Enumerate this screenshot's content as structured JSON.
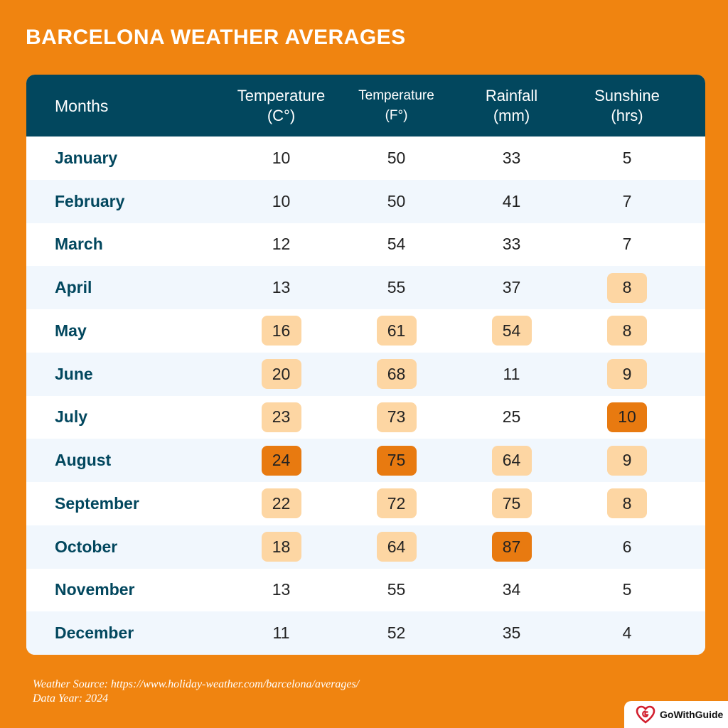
{
  "title": "BARCELONA WEATHER AVERAGES",
  "header": {
    "months": "Months",
    "temp_c": [
      "Temperature",
      "(C°)"
    ],
    "temp_f": [
      "Temperature",
      "(F°)"
    ],
    "rainfall": [
      "Rainfall",
      "(mm)"
    ],
    "sunshine": [
      "Sunshine",
      "(hrs)"
    ]
  },
  "source": {
    "line1": "Weather Source: https://www.holiday-weather.com/barcelona/averages/",
    "line2": "Data Year: 2024"
  },
  "brand": {
    "name": "GoWithGuide"
  },
  "colors": {
    "background": "#f08410",
    "header": "#02475e",
    "highlight_light": "#fdd6a3",
    "highlight_dark": "#e87a10",
    "row_alt": "#f1f7fd"
  },
  "chart_data": {
    "type": "table",
    "title": "BARCELONA WEATHER AVERAGES",
    "columns": [
      "Months",
      "Temperature (C°)",
      "Temperature (F°)",
      "Rainfall (mm)",
      "Sunshine (hrs)"
    ],
    "rows": [
      {
        "month": "January",
        "temp_c": {
          "v": "10",
          "hl": ""
        },
        "temp_f": {
          "v": "50",
          "hl": ""
        },
        "rain": {
          "v": "33",
          "hl": ""
        },
        "sun": {
          "v": "5",
          "hl": ""
        }
      },
      {
        "month": "February",
        "temp_c": {
          "v": "10",
          "hl": ""
        },
        "temp_f": {
          "v": "50",
          "hl": ""
        },
        "rain": {
          "v": "41",
          "hl": ""
        },
        "sun": {
          "v": "7",
          "hl": ""
        }
      },
      {
        "month": "March",
        "temp_c": {
          "v": "12",
          "hl": ""
        },
        "temp_f": {
          "v": "54",
          "hl": ""
        },
        "rain": {
          "v": "33",
          "hl": ""
        },
        "sun": {
          "v": "7",
          "hl": ""
        }
      },
      {
        "month": "April",
        "temp_c": {
          "v": "13",
          "hl": ""
        },
        "temp_f": {
          "v": "55",
          "hl": ""
        },
        "rain": {
          "v": "37",
          "hl": ""
        },
        "sun": {
          "v": "8",
          "hl": "light"
        }
      },
      {
        "month": "May",
        "temp_c": {
          "v": "16",
          "hl": "light"
        },
        "temp_f": {
          "v": "61",
          "hl": "light"
        },
        "rain": {
          "v": "54",
          "hl": "light"
        },
        "sun": {
          "v": "8",
          "hl": "light"
        }
      },
      {
        "month": "June",
        "temp_c": {
          "v": "20",
          "hl": "light"
        },
        "temp_f": {
          "v": "68",
          "hl": "light"
        },
        "rain": {
          "v": "11",
          "hl": ""
        },
        "sun": {
          "v": "9",
          "hl": "light"
        }
      },
      {
        "month": "July",
        "temp_c": {
          "v": "23",
          "hl": "light"
        },
        "temp_f": {
          "v": "73",
          "hl": "light"
        },
        "rain": {
          "v": "25",
          "hl": ""
        },
        "sun": {
          "v": "10",
          "hl": "dark"
        }
      },
      {
        "month": "August",
        "temp_c": {
          "v": "24",
          "hl": "dark"
        },
        "temp_f": {
          "v": "75",
          "hl": "dark"
        },
        "rain": {
          "v": "64",
          "hl": "light"
        },
        "sun": {
          "v": "9",
          "hl": "light"
        }
      },
      {
        "month": "September",
        "temp_c": {
          "v": "22",
          "hl": "light"
        },
        "temp_f": {
          "v": "72",
          "hl": "light"
        },
        "rain": {
          "v": "75",
          "hl": "light"
        },
        "sun": {
          "v": "8",
          "hl": "light"
        }
      },
      {
        "month": "October",
        "temp_c": {
          "v": "18",
          "hl": "light"
        },
        "temp_f": {
          "v": "64",
          "hl": "light"
        },
        "rain": {
          "v": "87",
          "hl": "dark"
        },
        "sun": {
          "v": "6",
          "hl": ""
        }
      },
      {
        "month": "November",
        "temp_c": {
          "v": "13",
          "hl": ""
        },
        "temp_f": {
          "v": "55",
          "hl": ""
        },
        "rain": {
          "v": "34",
          "hl": ""
        },
        "sun": {
          "v": "5",
          "hl": ""
        }
      },
      {
        "month": "December",
        "temp_c": {
          "v": "11",
          "hl": ""
        },
        "temp_f": {
          "v": "52",
          "hl": ""
        },
        "rain": {
          "v": "35",
          "hl": ""
        },
        "sun": {
          "v": "4",
          "hl": ""
        }
      }
    ]
  }
}
